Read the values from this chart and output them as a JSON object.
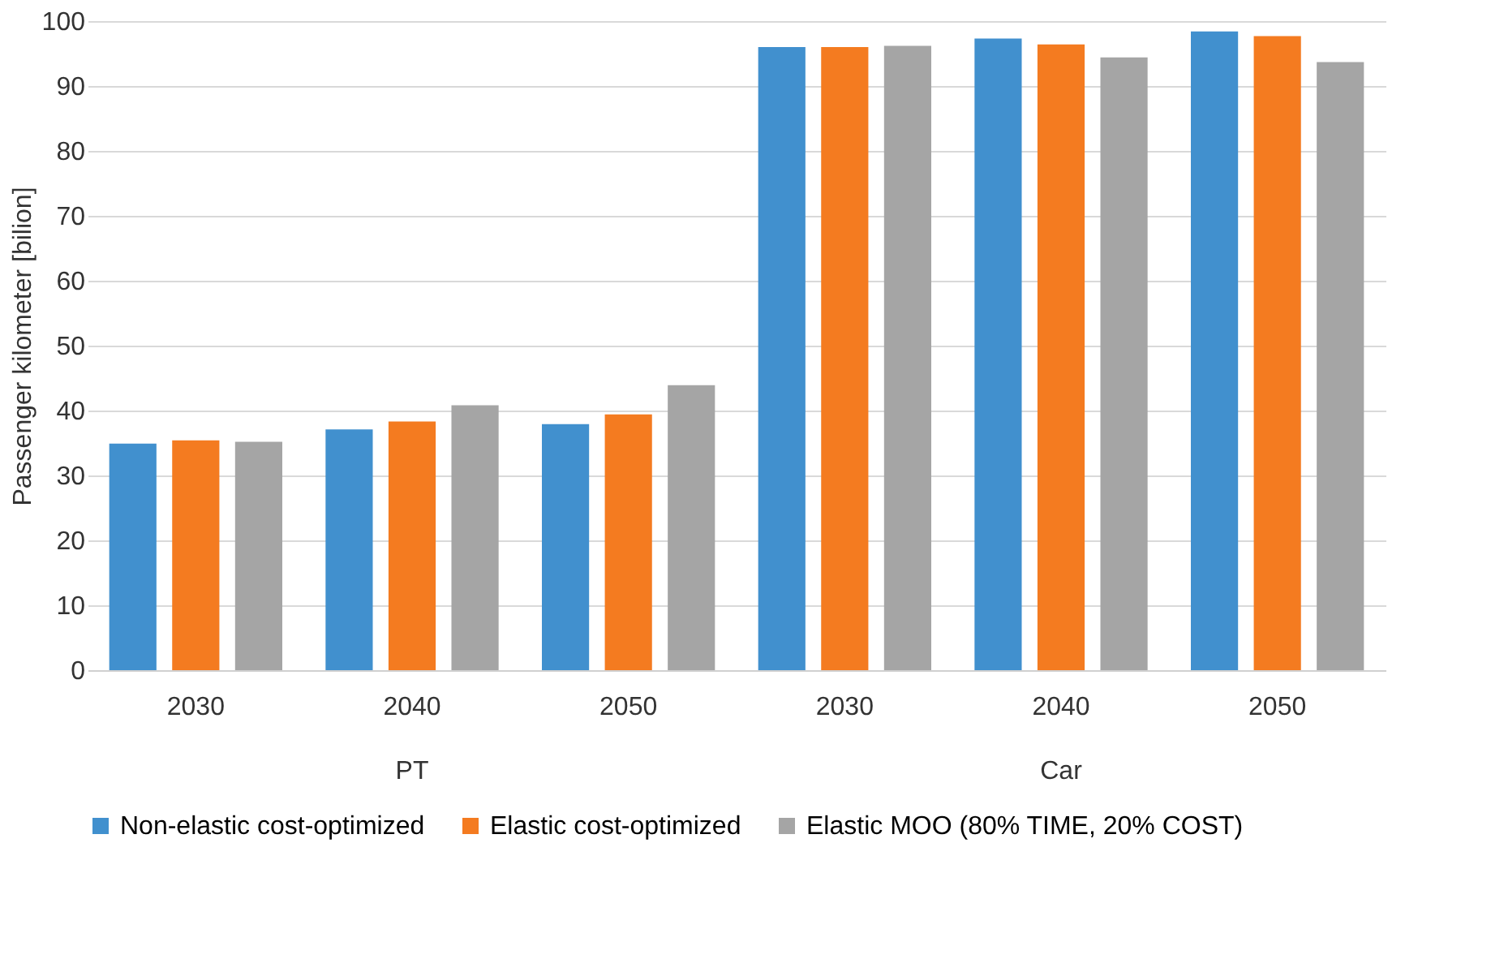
{
  "chart_data": {
    "type": "bar",
    "ylabel": "Passenger kilometer [bilion]",
    "categories": [
      "2030",
      "2040",
      "2050",
      "2030",
      "2040",
      "2050"
    ],
    "series": [
      {
        "name": "Non-elastic cost-optimized",
        "color": "#4190ce",
        "values": [
          34.9,
          37.1,
          37.9,
          96.0,
          97.3,
          98.4
        ]
      },
      {
        "name": "Elastic cost-optimized",
        "color": "#f47b20",
        "values": [
          35.4,
          38.3,
          39.4,
          96.0,
          96.4,
          97.7
        ]
      },
      {
        "name": "Elastic MOO (80% TIME, 20% COST)",
        "color": "#a5a5a5",
        "values": [
          35.2,
          40.8,
          43.9,
          96.2,
          94.4,
          93.7
        ]
      }
    ],
    "annotations": [
      "PT",
      "Car"
    ],
    "ylim": [
      0,
      100
    ],
    "yticks": [
      0,
      10,
      20,
      30,
      40,
      50,
      60,
      70,
      80,
      90,
      100
    ],
    "grid": "y",
    "legend": "bottom"
  }
}
